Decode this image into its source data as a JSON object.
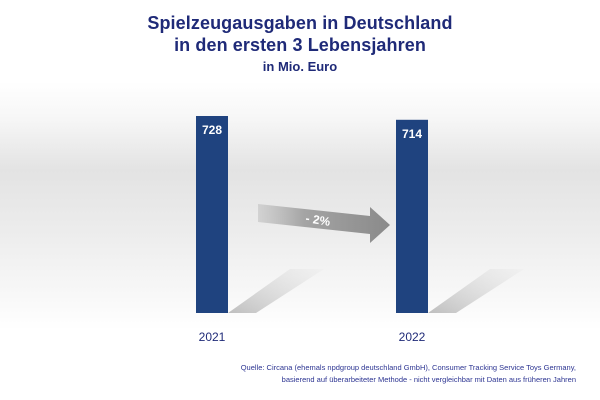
{
  "title": {
    "line1": "Spielzeugausgaben in Deutschland",
    "line2": "in den ersten 3 Lebensjahren",
    "unit": "in Mio. Euro"
  },
  "chart_data": {
    "type": "bar",
    "title": "Spielzeugausgaben in Deutschland in den ersten 3 Lebensjahren",
    "subtitle": "in Mio. Euro",
    "categories": [
      "2021",
      "2022"
    ],
    "values": [
      728,
      714
    ],
    "value_labels": [
      "728",
      "714"
    ],
    "bar_color": "#1f437f",
    "label_color": "#1f2a78",
    "ylim": [
      0,
      728
    ],
    "grid": false,
    "legend": "none",
    "annotation": {
      "text": "- 2%",
      "kind": "arrow",
      "from": "2021",
      "to": "2022",
      "color": "#9a9a9a"
    }
  },
  "footnote": {
    "line1": "Quelle: Circana (ehemals npdgroup deutschland GmbH), Consumer Tracking Service Toys Germany,",
    "line2": "basierend auf überarbeiteter Methode - nicht vergleichbar mit Daten aus früheren Jahren"
  }
}
